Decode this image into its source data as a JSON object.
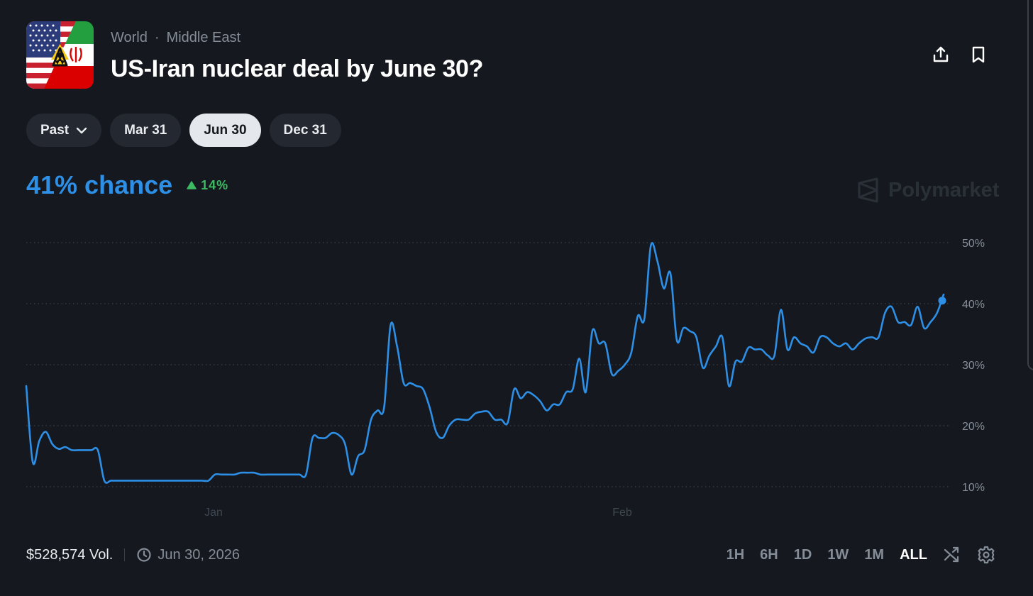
{
  "header": {
    "breadcrumb": [
      "World",
      "Middle East"
    ],
    "breadcrumb_separator": "·",
    "title": "US-Iran nuclear deal by June 30?",
    "icons": {
      "share": "share-upload-icon",
      "bookmark": "bookmark-icon"
    }
  },
  "tabs": [
    {
      "label": "Past",
      "dropdown": true,
      "active": false
    },
    {
      "label": "Mar 31",
      "active": false
    },
    {
      "label": "Jun 30",
      "active": true
    },
    {
      "label": "Dec 31",
      "active": false
    }
  ],
  "summary": {
    "chance": "41% chance",
    "change": "14%",
    "change_direction": "up"
  },
  "brand": {
    "name": "Polymarket"
  },
  "colors": {
    "accent": "#2d8fe6",
    "positive": "#3dbb62",
    "background": "#15191f"
  },
  "chart_data": {
    "type": "line",
    "x_tick_labels": [
      "Jan",
      "Feb"
    ],
    "y_tick_labels": [
      "10%",
      "20%",
      "30%",
      "40%",
      "50%"
    ],
    "ylim": [
      10,
      50
    ],
    "grid": true,
    "series": [
      {
        "color": "#2d8fe6",
        "values": [
          26.5,
          14,
          17.5,
          19,
          17,
          16.2,
          16.5,
          16,
          16,
          16,
          16,
          16,
          11,
          11,
          11,
          11,
          11,
          11,
          11,
          11,
          11,
          11,
          11,
          11,
          11,
          11,
          11,
          11,
          11,
          12,
          12,
          12,
          12,
          12.3,
          12.3,
          12.3,
          12,
          12,
          12,
          12,
          12,
          12,
          12,
          12,
          18,
          18,
          18,
          18.8,
          18.5,
          17,
          12,
          15,
          16,
          21,
          22.5,
          23,
          36.5,
          33,
          27,
          27,
          26.5,
          26,
          23,
          19,
          18,
          20,
          21,
          21,
          21,
          22,
          22.3,
          22.3,
          21,
          21,
          20.5,
          26,
          24.5,
          25.5,
          25,
          24,
          22.5,
          23.5,
          23.5,
          25.5,
          26,
          31,
          25.5,
          35.5,
          33.5,
          33.5,
          28.5,
          29,
          30,
          32,
          38,
          37.5,
          49.5,
          47,
          42.5,
          45,
          34,
          36,
          35.5,
          34.5,
          29.5,
          31.5,
          33,
          34.5,
          26.5,
          30.5,
          30.5,
          32.8,
          32.5,
          32.5,
          31.5,
          31.5,
          39,
          32.5,
          34.5,
          33.5,
          33,
          32,
          34.5,
          34.5,
          33.5,
          33,
          33.5,
          32.5,
          33.5,
          34.3,
          34.5,
          34.5,
          38.5,
          39.5,
          37,
          37,
          36.5,
          39.5,
          36,
          37,
          38.5,
          41.5
        ]
      }
    ],
    "current_value": 40.5
  },
  "footer": {
    "volume": "$528,574 Vol.",
    "end_date": "Jun 30, 2026",
    "ranges": [
      "1H",
      "6H",
      "1D",
      "1W",
      "1M",
      "ALL"
    ],
    "active_range": "ALL",
    "icons": {
      "clock": "clock-icon",
      "shuffle": "shuffle-icon",
      "settings": "gear-icon"
    }
  }
}
